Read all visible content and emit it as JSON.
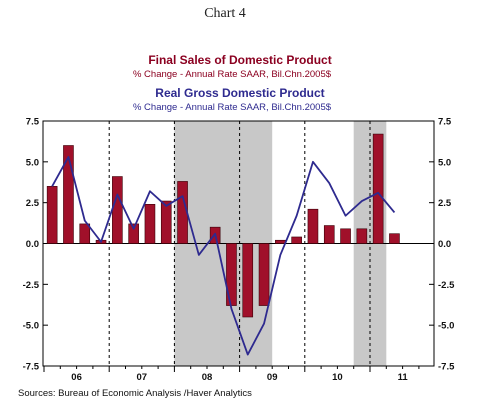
{
  "page_title": "Chart 4",
  "source": "Sources:  Bureau of Economic Analysis /Haver Analytics",
  "legend": [
    {
      "title": "Final Sales of Domestic Product",
      "subtitle": "%  Change - Annual Rate     SAAR, Bil.Chn.2005$",
      "color": "#8b0020"
    },
    {
      "title": "Real Gross Domestic Product",
      "subtitle": "%  Change - Annual Rate     SAAR, Bil.Chn.2005$",
      "color": "#2e2a8f"
    }
  ],
  "chart_data": {
    "type": "bar",
    "ylim": [
      -7.5,
      7.5
    ],
    "yticks": [
      "7.5",
      "5.0",
      "2.5",
      "0.0",
      "-2.5",
      "-5.0",
      "-7.5"
    ],
    "year_labels": [
      "06",
      "07",
      "08",
      "09",
      "10",
      "11"
    ],
    "quarters": [
      "2006Q1",
      "2006Q2",
      "2006Q3",
      "2006Q4",
      "2007Q1",
      "2007Q2",
      "2007Q3",
      "2007Q4",
      "2008Q1",
      "2008Q2",
      "2008Q3",
      "2008Q4",
      "2009Q1",
      "2009Q2",
      "2009Q3",
      "2009Q4",
      "2010Q1",
      "2010Q2",
      "2010Q3",
      "2010Q4",
      "2011Q1",
      "2011Q2",
      "2011Q3",
      "2011Q4"
    ],
    "shaded_periods": [
      [
        "2008Q1",
        "2009Q2"
      ],
      [
        "2010Q4",
        "2011Q1"
      ]
    ],
    "series": [
      {
        "name": "Final Sales of Domestic Product",
        "type": "bar",
        "color": "#a0102a",
        "values": [
          3.5,
          6.0,
          1.2,
          0.2,
          4.1,
          1.2,
          2.4,
          2.6,
          3.8,
          0.0,
          1.0,
          -3.8,
          -4.5,
          -3.8,
          0.2,
          0.4,
          2.1,
          1.1,
          0.9,
          0.9,
          6.7,
          0.6
        ]
      },
      {
        "name": "Real Gross Domestic Product",
        "type": "line",
        "color": "#2e2a8f",
        "values": [
          3.5,
          5.3,
          1.4,
          0.1,
          3.0,
          0.9,
          3.2,
          2.3,
          2.9,
          -0.7,
          0.6,
          -4.0,
          -6.8,
          -4.9,
          -0.7,
          1.7,
          5.0,
          3.7,
          1.7,
          2.6,
          3.1,
          1.9
        ]
      }
    ]
  }
}
